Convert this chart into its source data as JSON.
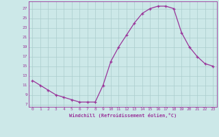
{
  "x": [
    0,
    1,
    2,
    3,
    4,
    5,
    6,
    7,
    8,
    9,
    10,
    11,
    12,
    13,
    14,
    15,
    16,
    17,
    18,
    19,
    20,
    21,
    22,
    23
  ],
  "y": [
    12,
    11,
    10,
    9,
    8.5,
    8,
    7.5,
    7.5,
    7.5,
    11,
    16,
    19,
    21.5,
    24,
    26,
    27,
    27.5,
    27.5,
    27,
    22,
    19,
    17,
    15.5,
    15
  ],
  "line_color": "#993399",
  "marker": "+",
  "marker_size": 3,
  "bg_color": "#cce8e8",
  "grid_color": "#aacccc",
  "xlabel": "Windchill (Refroidissement éolien,°C)",
  "xlabel_color": "#993399",
  "tick_color": "#993399",
  "yticks": [
    7,
    9,
    11,
    13,
    15,
    17,
    19,
    21,
    23,
    25,
    27
  ],
  "xticks": [
    0,
    1,
    2,
    3,
    4,
    5,
    6,
    7,
    8,
    9,
    10,
    11,
    12,
    13,
    14,
    15,
    16,
    17,
    18,
    19,
    20,
    21,
    22,
    23
  ],
  "ylim": [
    6.5,
    28.5
  ],
  "xlim": [
    -0.5,
    23.5
  ]
}
